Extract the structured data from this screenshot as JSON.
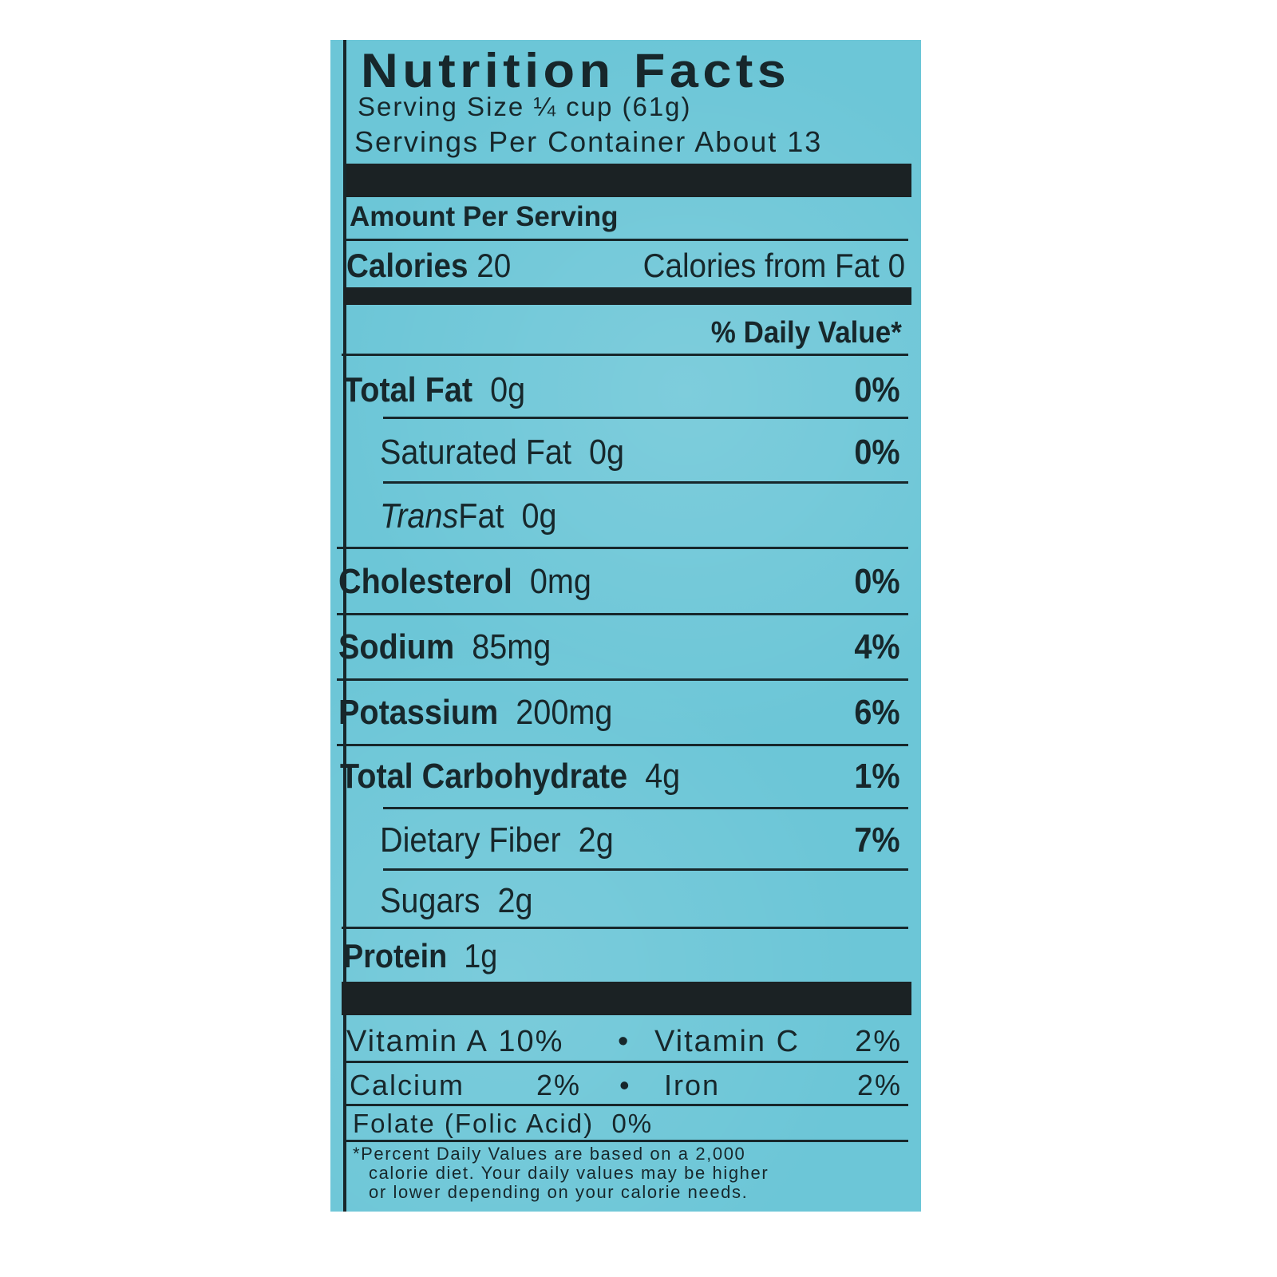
{
  "title": "Nutrition Facts",
  "serving_size": "Serving Size ¼ cup (61g)",
  "servings_per_container": "Servings Per Container About 13",
  "amount_per_serving": "Amount Per Serving",
  "calories_label": "Calories",
  "calories_value": "20",
  "calories_from_fat": "Calories from Fat 0",
  "daily_value_header": "% Daily Value*",
  "nutrients": [
    {
      "name": "Total Fat",
      "amount": "0g",
      "dv": "0%"
    },
    {
      "name": "Saturated Fat",
      "amount": "0g",
      "dv": "0%"
    },
    {
      "name": "Trans",
      "name_suffix": " Fat",
      "amount": "0g"
    },
    {
      "name": "Cholesterol",
      "amount": "0mg",
      "dv": "0%"
    },
    {
      "name": "Sodium",
      "amount": "85mg",
      "dv": "4%"
    },
    {
      "name": "Potassium",
      "amount": "200mg",
      "dv": "6%"
    },
    {
      "name": "Total Carbohydrate",
      "amount": "4g",
      "dv": "1%"
    },
    {
      "name": "Dietary Fiber",
      "amount": "2g",
      "dv": "7%"
    },
    {
      "name": "Sugars",
      "amount": "2g"
    },
    {
      "name": "Protein",
      "amount": "1g"
    }
  ],
  "vitamins": [
    {
      "name": "Vitamin A",
      "dv": "10%"
    },
    {
      "name": "Vitamin C",
      "dv": "2%"
    },
    {
      "name": "Calcium",
      "dv": "2%"
    },
    {
      "name": "Iron",
      "dv": "2%"
    },
    {
      "name": "Folate (Folic Acid)",
      "dv": "0%"
    }
  ],
  "bullet": "•",
  "footnote": [
    "*Percent Daily Values are based on a 2,000",
    "calorie diet. Your daily values may be higher",
    "or lower depending on your calorie needs."
  ],
  "colors": {
    "background": "#6cc6d7",
    "ink": "#17272b"
  }
}
